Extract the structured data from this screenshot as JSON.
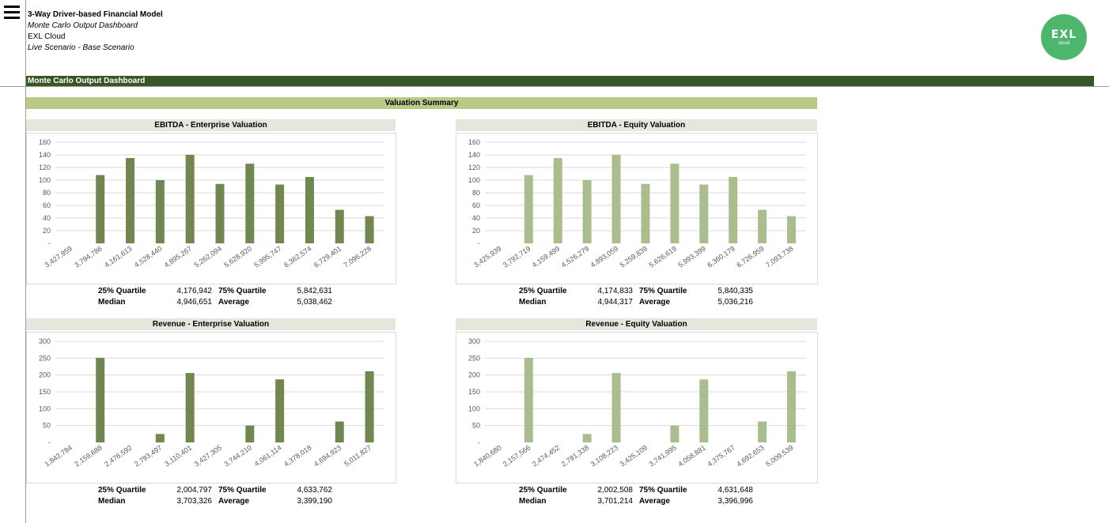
{
  "header": {
    "title": "3-Way Driver-based Financial Model",
    "subtitle": "Monte Carlo Output Dashboard",
    "company": "EXL Cloud",
    "scenario": "Live Scenario - Base Scenario"
  },
  "logo": {
    "brand": "EXL",
    "sub": "cloud",
    "color": "#4cb66c"
  },
  "banner": "Monte Carlo Output Dashboard",
  "summary_title": "Valuation Summary",
  "colors": {
    "dark_bar": "#70874f",
    "light_bar": "#a9bd8e",
    "banner": "#375623",
    "summary_bar": "#b7ca86",
    "chart_title_bg": "#e4e8dc"
  },
  "stats_labels": {
    "q25": "25% Quartile",
    "q75": "75% Quartile",
    "median": "Median",
    "average": "Average"
  },
  "panels": [
    {
      "title": "EBITDA - Enterprise Valuation",
      "q25": "4,176,942",
      "q75": "5,842,631",
      "median": "4,946,651",
      "average": "5,038,462"
    },
    {
      "title": "EBITDA - Equity Valuation",
      "q25": "4,174,833",
      "q75": "5,840,335",
      "median": "4,944,317",
      "average": "5,036,216"
    },
    {
      "title": "Revenue - Enterprise Valuation",
      "q25": "2,004,797",
      "q75": "4,633,762",
      "median": "3,703,326",
      "average": "3,399,190"
    },
    {
      "title": "Revenue - Equity Valuation",
      "q25": "2,002,508",
      "q75": "4,631,648",
      "median": "3,701,214",
      "average": "3,396,996"
    }
  ],
  "chart_data": [
    {
      "type": "bar",
      "title": "EBITDA - Enterprise Valuation",
      "categories": [
        "3,427,959",
        "3,794,786",
        "4,161,613",
        "4,528,440",
        "4,895,267",
        "5,262,094",
        "5,628,920",
        "5,995,747",
        "6,362,574",
        "6,729,401",
        "7,096,228"
      ],
      "values": [
        0,
        108,
        135,
        100,
        140,
        94,
        126,
        93,
        105,
        53,
        43
      ],
      "yticks": [
        "-",
        "20",
        "40",
        "60",
        "80",
        "100",
        "120",
        "140",
        "160"
      ],
      "ylim": [
        0,
        160
      ],
      "grid": true,
      "color": "#70874f"
    },
    {
      "type": "bar",
      "title": "EBITDA - Equity Valuation",
      "categories": [
        "3,425,939",
        "3,792,719",
        "4,159,499",
        "4,526,279",
        "4,893,059",
        "5,259,839",
        "5,626,619",
        "5,993,399",
        "6,360,179",
        "6,726,959",
        "7,093,738"
      ],
      "values": [
        0,
        108,
        135,
        100,
        140,
        94,
        126,
        93,
        105,
        53,
        43
      ],
      "yticks": [
        "-",
        "20",
        "40",
        "60",
        "80",
        "100",
        "120",
        "140",
        "160"
      ],
      "ylim": [
        0,
        160
      ],
      "grid": true,
      "color": "#a9bd8e"
    },
    {
      "type": "bar",
      "title": "Revenue - Enterprise Valuation",
      "categories": [
        "1,842,784",
        "2,159,688",
        "2,476,592",
        "2,793,497",
        "3,110,401",
        "3,427,305",
        "3,744,210",
        "4,061,114",
        "4,378,018",
        "4,694,923",
        "5,011,827"
      ],
      "values": [
        0,
        251,
        0,
        25,
        206,
        0,
        50,
        187,
        0,
        62,
        211
      ],
      "yticks": [
        "-",
        "50",
        "100",
        "150",
        "200",
        "250",
        "300"
      ],
      "ylim": [
        0,
        300
      ],
      "grid": true,
      "color": "#70874f"
    },
    {
      "type": "bar",
      "title": "Revenue - Equity Valuation",
      "categories": [
        "1,840,680",
        "2,157,566",
        "2,474,452",
        "2,791,338",
        "3,108,223",
        "3,425,109",
        "3,741,995",
        "4,058,881",
        "4,375,767",
        "4,692,653",
        "5,009,539"
      ],
      "values": [
        0,
        251,
        0,
        25,
        206,
        0,
        50,
        187,
        0,
        62,
        211
      ],
      "yticks": [
        "-",
        "50",
        "100",
        "150",
        "200",
        "250",
        "300"
      ],
      "ylim": [
        0,
        300
      ],
      "grid": true,
      "color": "#a9bd8e"
    }
  ]
}
